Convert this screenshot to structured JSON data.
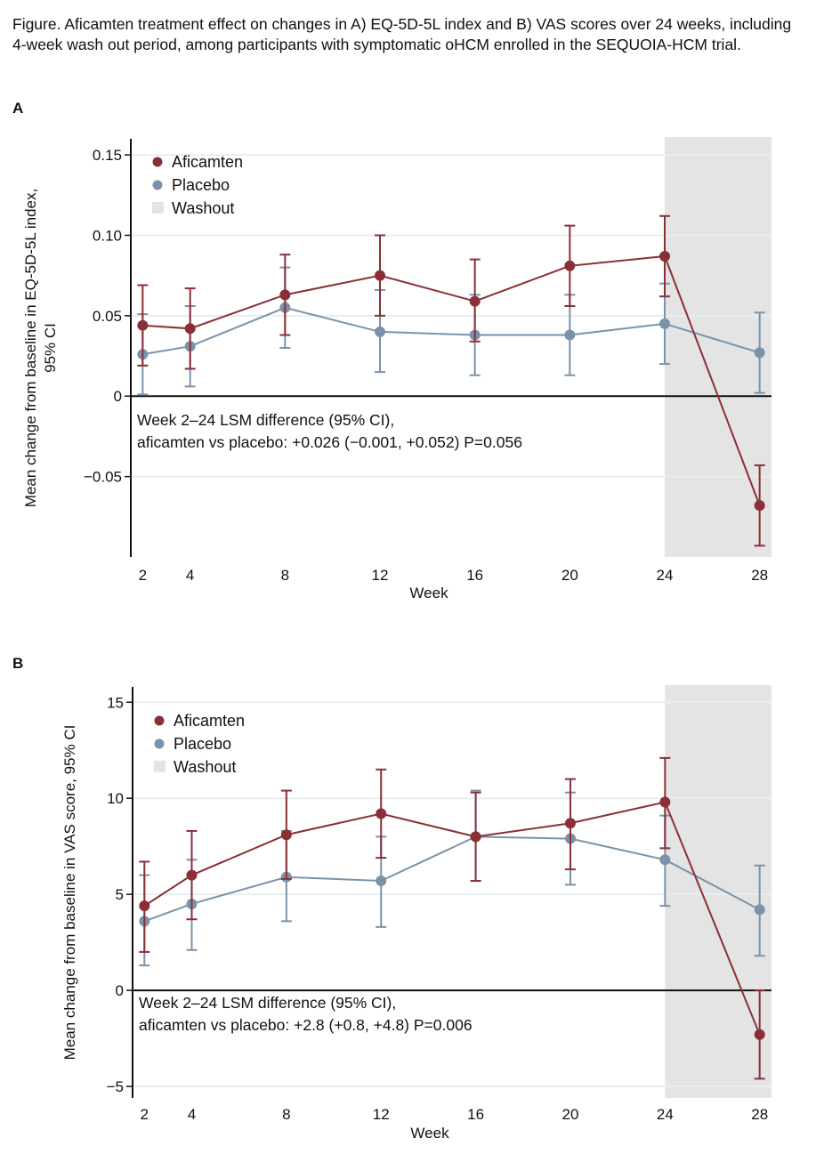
{
  "caption": "Figure. Aficamten treatment effect on changes in A) EQ-5D-5L index and B) VAS scores over 24 weeks, including 4-week wash out period, among participants with symptomatic oHCM enrolled in the SEQUOIA-HCM trial.",
  "colors": {
    "aficamten": "#8b2f36",
    "placebo": "#7a93aa",
    "washout": "#e4e4e4",
    "gridline": "#e8eef0",
    "axis": "#111111"
  },
  "chart_data": [
    {
      "panel": "A",
      "type": "line",
      "title": "",
      "xlabel": "Week",
      "ylabel": "Mean change from baseline in EQ-5D-5L index, 95% CI",
      "ylabel_lines": [
        "Mean change from baseline in EQ-5D-5L index,",
        "95% CI"
      ],
      "x": [
        2,
        4,
        8,
        12,
        16,
        20,
        24,
        28
      ],
      "x_ticks": [
        2,
        4,
        8,
        12,
        16,
        20,
        24,
        28
      ],
      "x_tick_labels": [
        "2",
        "4",
        "8",
        "12",
        "16",
        "20",
        "24",
        "28"
      ],
      "xlim": [
        1.5,
        28.5
      ],
      "ylim": [
        -0.1,
        0.16
      ],
      "y_ticks": [
        -0.05,
        0,
        0.05,
        0.1,
        0.15
      ],
      "y_tick_labels": [
        "−0.05",
        "0",
        "0.05",
        "0.10",
        "0.15"
      ],
      "grid": true,
      "washout_range": [
        24,
        28.5
      ],
      "legend": {
        "position": "top-left",
        "entries": [
          {
            "label": "Aficamten",
            "kind": "marker",
            "series": "aficamten"
          },
          {
            "label": "Placebo",
            "kind": "marker",
            "series": "placebo"
          },
          {
            "label": "Washout",
            "kind": "patch",
            "series": "washout"
          }
        ]
      },
      "series": [
        {
          "name": "Aficamten",
          "key": "aficamten",
          "values": [
            0.044,
            0.042,
            0.063,
            0.075,
            0.059,
            0.081,
            0.087,
            -0.068
          ],
          "ci_low": [
            0.019,
            0.017,
            0.038,
            0.05,
            0.034,
            0.056,
            0.062,
            -0.093
          ],
          "ci_high": [
            0.069,
            0.067,
            0.088,
            0.1,
            0.085,
            0.106,
            0.112,
            -0.043
          ]
        },
        {
          "name": "Placebo",
          "key": "placebo",
          "values": [
            0.026,
            0.031,
            0.055,
            0.04,
            0.038,
            0.038,
            0.045,
            0.027
          ],
          "ci_low": [
            0.001,
            0.006,
            0.03,
            0.015,
            0.013,
            0.013,
            0.02,
            0.002
          ],
          "ci_high": [
            0.051,
            0.056,
            0.08,
            0.066,
            0.063,
            0.063,
            0.07,
            0.052
          ]
        }
      ],
      "annotation": [
        "Week 2–24 LSM difference (95% CI),",
        "aficamten vs placebo: +0.026 (−0.001, +0.052) P=0.056"
      ]
    },
    {
      "panel": "B",
      "type": "line",
      "title": "",
      "xlabel": "Week",
      "ylabel": "Mean change from baseline in VAS score, 95% CI",
      "ylabel_lines": [
        "Mean change from baseline in VAS score, 95% CI"
      ],
      "x": [
        2,
        4,
        8,
        12,
        16,
        20,
        24,
        28
      ],
      "x_ticks": [
        2,
        4,
        8,
        12,
        16,
        20,
        24,
        28
      ],
      "x_tick_labels": [
        "2",
        "4",
        "8",
        "12",
        "16",
        "20",
        "24",
        "28"
      ],
      "xlim": [
        1.5,
        28.5
      ],
      "ylim": [
        -5.6,
        15.8
      ],
      "y_ticks": [
        -5,
        0,
        5,
        10,
        15
      ],
      "y_tick_labels": [
        "−5",
        "0",
        "5",
        "10",
        "15"
      ],
      "grid": true,
      "washout_range": [
        24,
        28.5
      ],
      "legend": {
        "position": "top-left",
        "entries": [
          {
            "label": "Aficamten",
            "kind": "marker",
            "series": "aficamten"
          },
          {
            "label": "Placebo",
            "kind": "marker",
            "series": "placebo"
          },
          {
            "label": "Washout",
            "kind": "patch",
            "series": "washout"
          }
        ]
      },
      "series": [
        {
          "name": "Aficamten",
          "key": "aficamten",
          "values": [
            4.4,
            6.0,
            8.1,
            9.2,
            8.0,
            8.7,
            9.8,
            -2.3
          ],
          "ci_low": [
            2.0,
            3.7,
            5.8,
            6.9,
            5.7,
            6.3,
            7.4,
            -4.6
          ],
          "ci_high": [
            6.7,
            8.3,
            10.4,
            11.5,
            10.3,
            11.0,
            12.1,
            0.0
          ]
        },
        {
          "name": "Placebo",
          "key": "placebo",
          "values": [
            3.6,
            4.5,
            5.9,
            5.7,
            8.0,
            7.9,
            6.8,
            4.2
          ],
          "ci_low": [
            1.3,
            2.1,
            3.6,
            3.3,
            5.7,
            5.5,
            4.4,
            1.8
          ],
          "ci_high": [
            6.0,
            6.8,
            8.3,
            8.0,
            10.4,
            10.3,
            9.1,
            6.5
          ]
        }
      ],
      "annotation": [
        "Week 2–24 LSM difference (95% CI),",
        "aficamten vs placebo: +2.8 (+0.8, +4.8) P=0.006"
      ]
    }
  ]
}
